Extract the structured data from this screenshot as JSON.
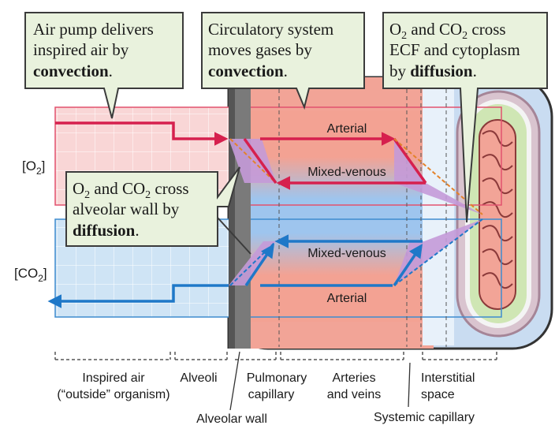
{
  "callouts": {
    "air_pump": {
      "line1": "Air pump delivers",
      "line2": "inspired air by",
      "line3_bold": "convection",
      "line3_end": "."
    },
    "circulatory": {
      "line1": "Circulatory system",
      "line2": "moves gases by",
      "line3_bold": "convection",
      "line3_end": "."
    },
    "ecf": {
      "line1_a": "O",
      "line1_sub1": "2",
      "line1_b": " and CO",
      "line1_sub2": "2",
      "line1_c": " cross",
      "line2": "ECF and cytoplasm",
      "line3_a": "by ",
      "line3_bold": "diffusion",
      "line3_end": "."
    },
    "alveolar": {
      "line1_a": "O",
      "line1_sub1": "2",
      "line1_b": " and CO",
      "line1_sub2": "2",
      "line1_c": " cross",
      "line2": "alveolar wall by",
      "line3_bold": "diffusion",
      "line3_end": "."
    }
  },
  "axis": {
    "o2_label": "[O",
    "o2_sub": "2",
    "o2_end": "]",
    "co2_label": "[CO",
    "co2_sub": "2",
    "co2_end": "]"
  },
  "curves": {
    "o2_arterial": "Arterial",
    "o2_mixed_venous": "Mixed-venous",
    "co2_mixed_venous": "Mixed-venous",
    "co2_arterial": "Arterial"
  },
  "regions": {
    "inspired_air_1": "Inspired air",
    "inspired_air_2": "(“outside” organism)",
    "alveoli": "Alveoli",
    "pulmonary_1": "Pulmonary",
    "pulmonary_2": "capillary",
    "arteries_1": "Arteries",
    "arteries_2": "and veins",
    "interstitial_1": "Interstitial",
    "interstitial_2": "space",
    "alveolar_wall": "Alveolar wall",
    "systemic_capillary": "Systemic capillary"
  },
  "colors": {
    "o2_line": "#d6204e",
    "co2_line": "#1f78c8",
    "o2_band": "#f9d6d6",
    "co2_band": "#cfe4f5",
    "blood": "#f2a497",
    "alveolar_wall": "#7a7a7a",
    "diffusion_fill": "#c49ad8",
    "diffusion_edge": "#e3822a",
    "callout_bg": "#e9f2dd",
    "callout_border": "#3b3b3b"
  }
}
